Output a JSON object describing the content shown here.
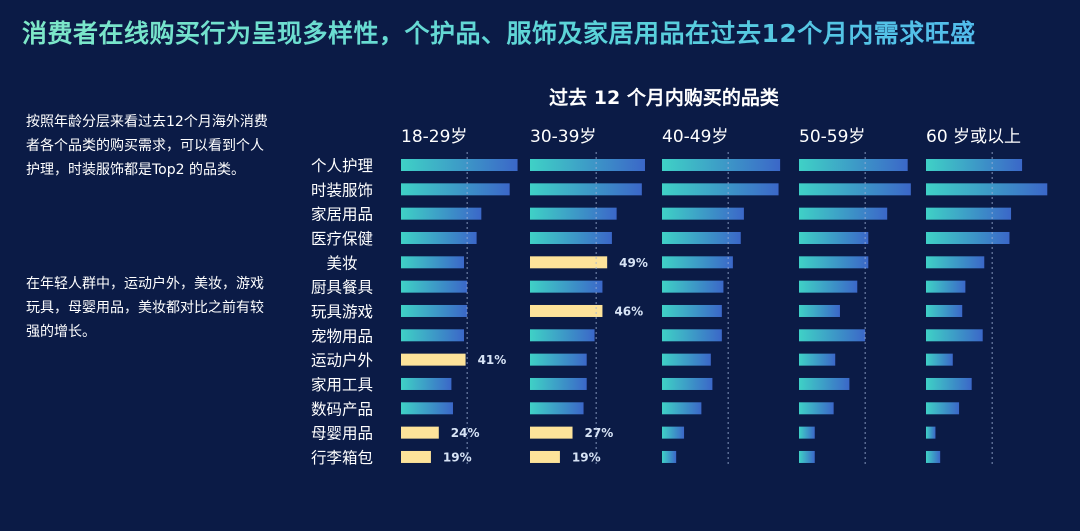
{
  "header": {
    "title": "消费者在线购买行为呈现多样性，个护品、服饰及家居用品在过去12个月内需求旺盛"
  },
  "sidebar": {
    "paragraph1": "按照年龄分层来看过去12个月海外消费者各个品类的购买需求，可以看到个人护理，时装服饰都是Top2 的品类。",
    "paragraph2": "在年轻人群中，运动户外，美妆，游戏玩具，母婴用品，美妆都对比之前有较强的增长。"
  },
  "colors": {
    "background": "#0b1b46",
    "bar_gradient_start": "#3fd1c6",
    "bar_gradient_end": "#3b67c8",
    "highlight": "#fde39a",
    "reference_line": "#9fb2d6"
  },
  "chart_data": {
    "type": "bar",
    "orientation": "horizontal",
    "title": "过去 12 个月内购买的品类",
    "categories": [
      "个人护理",
      "时装服饰",
      "家居用品",
      "医疗保健",
      "美妆",
      "厨具餐具",
      "玩具游戏",
      "宠物用品",
      "运动户外",
      "家用工具",
      "数码产品",
      "母婴用品",
      "行李箱包"
    ],
    "xlim": [
      0,
      80
    ],
    "series": [
      {
        "name": "18-29岁",
        "values": [
          74,
          69,
          51,
          48,
          40,
          42,
          42,
          40,
          41,
          32,
          33,
          24,
          19
        ],
        "highlighted": [
          false,
          false,
          false,
          false,
          false,
          false,
          false,
          false,
          true,
          false,
          false,
          true,
          true
        ],
        "labels": [
          "",
          "",
          "",
          "",
          "",
          "",
          "",
          "",
          "41%",
          "",
          "",
          "24%",
          "19%"
        ]
      },
      {
        "name": "30-39岁",
        "values": [
          73,
          71,
          55,
          52,
          49,
          46,
          46,
          41,
          36,
          36,
          34,
          27,
          19
        ],
        "highlighted": [
          false,
          false,
          false,
          false,
          true,
          false,
          true,
          false,
          false,
          false,
          false,
          true,
          true
        ],
        "labels": [
          "",
          "",
          "",
          "",
          "49%",
          "",
          "46%",
          "",
          "",
          "",
          "",
          "27%",
          "19%"
        ]
      },
      {
        "name": "40-49岁",
        "values": [
          75,
          74,
          52,
          50,
          45,
          39,
          38,
          38,
          31,
          32,
          25,
          14,
          9
        ],
        "highlighted": [
          false,
          false,
          false,
          false,
          false,
          false,
          false,
          false,
          false,
          false,
          false,
          false,
          false
        ],
        "labels": [
          "",
          "",
          "",
          "",
          "",
          "",
          "",
          "",
          "",
          "",
          "",
          "",
          ""
        ]
      },
      {
        "name": "50-59岁",
        "values": [
          69,
          71,
          56,
          44,
          44,
          37,
          26,
          42,
          23,
          32,
          22,
          10,
          10
        ],
        "highlighted": [
          false,
          false,
          false,
          false,
          false,
          false,
          false,
          false,
          false,
          false,
          false,
          false,
          false
        ],
        "labels": [
          "",
          "",
          "",
          "",
          "",
          "",
          "",
          "",
          "",
          "",
          "",
          "",
          ""
        ]
      },
      {
        "name": "60 岁或以上",
        "values": [
          61,
          77,
          54,
          53,
          37,
          25,
          23,
          36,
          17,
          29,
          21,
          6,
          9
        ],
        "highlighted": [
          false,
          false,
          false,
          false,
          false,
          false,
          false,
          false,
          false,
          false,
          false,
          false,
          false
        ],
        "labels": [
          "",
          "",
          "",
          "",
          "",
          "",
          "",
          "",
          "",
          "",
          "",
          "",
          ""
        ]
      }
    ],
    "reference_line_value": 42
  }
}
